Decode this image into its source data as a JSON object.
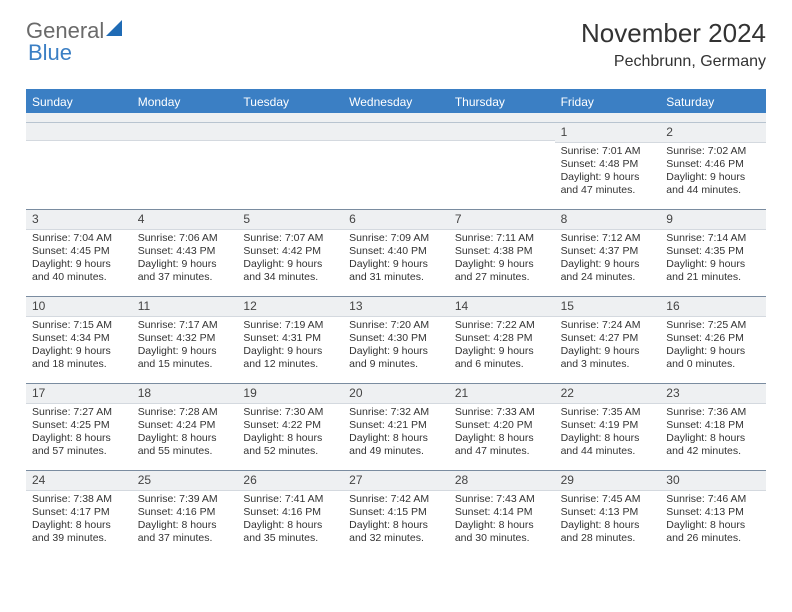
{
  "logo": {
    "text1": "General",
    "text2": "Blue",
    "sail_color": "#1f6bb5"
  },
  "header": {
    "title": "November 2024",
    "location": "Pechbrunn, Germany"
  },
  "colors": {
    "accent": "#3b7fc4",
    "header_text": "#ffffff",
    "grid_line": "#7a8ca0",
    "day_bar_bg": "#eef0f2",
    "body_text": "#333333"
  },
  "calendar": {
    "days_of_week": [
      "Sunday",
      "Monday",
      "Tuesday",
      "Wednesday",
      "Thursday",
      "Friday",
      "Saturday"
    ],
    "weeks": [
      [
        null,
        null,
        null,
        null,
        null,
        {
          "n": "1",
          "sunrise": "Sunrise: 7:01 AM",
          "sunset": "Sunset: 4:48 PM",
          "daylight1": "Daylight: 9 hours",
          "daylight2": "and 47 minutes."
        },
        {
          "n": "2",
          "sunrise": "Sunrise: 7:02 AM",
          "sunset": "Sunset: 4:46 PM",
          "daylight1": "Daylight: 9 hours",
          "daylight2": "and 44 minutes."
        }
      ],
      [
        {
          "n": "3",
          "sunrise": "Sunrise: 7:04 AM",
          "sunset": "Sunset: 4:45 PM",
          "daylight1": "Daylight: 9 hours",
          "daylight2": "and 40 minutes."
        },
        {
          "n": "4",
          "sunrise": "Sunrise: 7:06 AM",
          "sunset": "Sunset: 4:43 PM",
          "daylight1": "Daylight: 9 hours",
          "daylight2": "and 37 minutes."
        },
        {
          "n": "5",
          "sunrise": "Sunrise: 7:07 AM",
          "sunset": "Sunset: 4:42 PM",
          "daylight1": "Daylight: 9 hours",
          "daylight2": "and 34 minutes."
        },
        {
          "n": "6",
          "sunrise": "Sunrise: 7:09 AM",
          "sunset": "Sunset: 4:40 PM",
          "daylight1": "Daylight: 9 hours",
          "daylight2": "and 31 minutes."
        },
        {
          "n": "7",
          "sunrise": "Sunrise: 7:11 AM",
          "sunset": "Sunset: 4:38 PM",
          "daylight1": "Daylight: 9 hours",
          "daylight2": "and 27 minutes."
        },
        {
          "n": "8",
          "sunrise": "Sunrise: 7:12 AM",
          "sunset": "Sunset: 4:37 PM",
          "daylight1": "Daylight: 9 hours",
          "daylight2": "and 24 minutes."
        },
        {
          "n": "9",
          "sunrise": "Sunrise: 7:14 AM",
          "sunset": "Sunset: 4:35 PM",
          "daylight1": "Daylight: 9 hours",
          "daylight2": "and 21 minutes."
        }
      ],
      [
        {
          "n": "10",
          "sunrise": "Sunrise: 7:15 AM",
          "sunset": "Sunset: 4:34 PM",
          "daylight1": "Daylight: 9 hours",
          "daylight2": "and 18 minutes."
        },
        {
          "n": "11",
          "sunrise": "Sunrise: 7:17 AM",
          "sunset": "Sunset: 4:32 PM",
          "daylight1": "Daylight: 9 hours",
          "daylight2": "and 15 minutes."
        },
        {
          "n": "12",
          "sunrise": "Sunrise: 7:19 AM",
          "sunset": "Sunset: 4:31 PM",
          "daylight1": "Daylight: 9 hours",
          "daylight2": "and 12 minutes."
        },
        {
          "n": "13",
          "sunrise": "Sunrise: 7:20 AM",
          "sunset": "Sunset: 4:30 PM",
          "daylight1": "Daylight: 9 hours",
          "daylight2": "and 9 minutes."
        },
        {
          "n": "14",
          "sunrise": "Sunrise: 7:22 AM",
          "sunset": "Sunset: 4:28 PM",
          "daylight1": "Daylight: 9 hours",
          "daylight2": "and 6 minutes."
        },
        {
          "n": "15",
          "sunrise": "Sunrise: 7:24 AM",
          "sunset": "Sunset: 4:27 PM",
          "daylight1": "Daylight: 9 hours",
          "daylight2": "and 3 minutes."
        },
        {
          "n": "16",
          "sunrise": "Sunrise: 7:25 AM",
          "sunset": "Sunset: 4:26 PM",
          "daylight1": "Daylight: 9 hours",
          "daylight2": "and 0 minutes."
        }
      ],
      [
        {
          "n": "17",
          "sunrise": "Sunrise: 7:27 AM",
          "sunset": "Sunset: 4:25 PM",
          "daylight1": "Daylight: 8 hours",
          "daylight2": "and 57 minutes."
        },
        {
          "n": "18",
          "sunrise": "Sunrise: 7:28 AM",
          "sunset": "Sunset: 4:24 PM",
          "daylight1": "Daylight: 8 hours",
          "daylight2": "and 55 minutes."
        },
        {
          "n": "19",
          "sunrise": "Sunrise: 7:30 AM",
          "sunset": "Sunset: 4:22 PM",
          "daylight1": "Daylight: 8 hours",
          "daylight2": "and 52 minutes."
        },
        {
          "n": "20",
          "sunrise": "Sunrise: 7:32 AM",
          "sunset": "Sunset: 4:21 PM",
          "daylight1": "Daylight: 8 hours",
          "daylight2": "and 49 minutes."
        },
        {
          "n": "21",
          "sunrise": "Sunrise: 7:33 AM",
          "sunset": "Sunset: 4:20 PM",
          "daylight1": "Daylight: 8 hours",
          "daylight2": "and 47 minutes."
        },
        {
          "n": "22",
          "sunrise": "Sunrise: 7:35 AM",
          "sunset": "Sunset: 4:19 PM",
          "daylight1": "Daylight: 8 hours",
          "daylight2": "and 44 minutes."
        },
        {
          "n": "23",
          "sunrise": "Sunrise: 7:36 AM",
          "sunset": "Sunset: 4:18 PM",
          "daylight1": "Daylight: 8 hours",
          "daylight2": "and 42 minutes."
        }
      ],
      [
        {
          "n": "24",
          "sunrise": "Sunrise: 7:38 AM",
          "sunset": "Sunset: 4:17 PM",
          "daylight1": "Daylight: 8 hours",
          "daylight2": "and 39 minutes."
        },
        {
          "n": "25",
          "sunrise": "Sunrise: 7:39 AM",
          "sunset": "Sunset: 4:16 PM",
          "daylight1": "Daylight: 8 hours",
          "daylight2": "and 37 minutes."
        },
        {
          "n": "26",
          "sunrise": "Sunrise: 7:41 AM",
          "sunset": "Sunset: 4:16 PM",
          "daylight1": "Daylight: 8 hours",
          "daylight2": "and 35 minutes."
        },
        {
          "n": "27",
          "sunrise": "Sunrise: 7:42 AM",
          "sunset": "Sunset: 4:15 PM",
          "daylight1": "Daylight: 8 hours",
          "daylight2": "and 32 minutes."
        },
        {
          "n": "28",
          "sunrise": "Sunrise: 7:43 AM",
          "sunset": "Sunset: 4:14 PM",
          "daylight1": "Daylight: 8 hours",
          "daylight2": "and 30 minutes."
        },
        {
          "n": "29",
          "sunrise": "Sunrise: 7:45 AM",
          "sunset": "Sunset: 4:13 PM",
          "daylight1": "Daylight: 8 hours",
          "daylight2": "and 28 minutes."
        },
        {
          "n": "30",
          "sunrise": "Sunrise: 7:46 AM",
          "sunset": "Sunset: 4:13 PM",
          "daylight1": "Daylight: 8 hours",
          "daylight2": "and 26 minutes."
        }
      ]
    ]
  }
}
